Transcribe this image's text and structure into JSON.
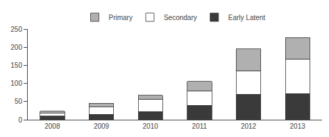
{
  "chart_data": {
    "type": "bar",
    "stacked": true,
    "categories": [
      "2008",
      "2009",
      "2010",
      "2011",
      "2012",
      "2013"
    ],
    "series": [
      {
        "name": "Early Latent",
        "color": "#3a3a3a",
        "values": [
          10,
          15,
          22,
          40,
          70,
          72
        ]
      },
      {
        "name": "Secondary",
        "color": "#ffffff",
        "values": [
          8,
          20,
          35,
          40,
          65,
          95
        ]
      },
      {
        "name": "Primary",
        "color": "#b0b0b0",
        "values": [
          5,
          10,
          10,
          25,
          60,
          60
        ]
      }
    ],
    "ylim": [
      0,
      250
    ],
    "yticks": [
      0,
      50,
      100,
      150,
      200,
      250
    ],
    "grid": false,
    "legend": "top"
  }
}
